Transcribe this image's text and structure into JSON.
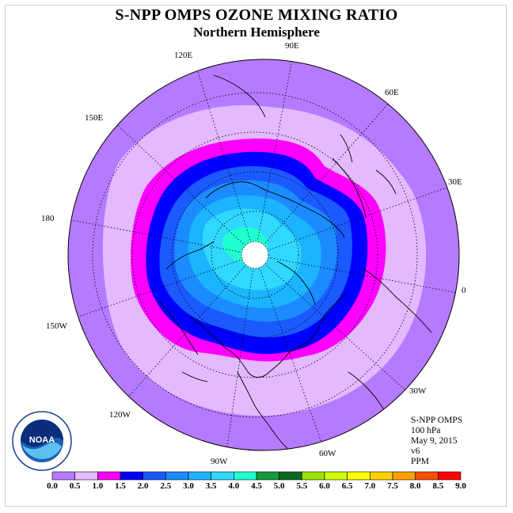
{
  "title": "S-NPP OMPS OZONE MIXING RATIO",
  "subtitle": "Northern Hemisphere",
  "longitude_labels": [
    "90E",
    "60E",
    "30E",
    "0",
    "30W",
    "60W",
    "90W",
    "120W",
    "150W",
    "180",
    "150E",
    "120E"
  ],
  "info": {
    "instrument": "S-NPP OMPS",
    "level": "100 hPa",
    "date": "May 9, 2015",
    "version": "v6",
    "units": "PPM"
  },
  "colorbar": {
    "labels": [
      "0.0",
      "0.5",
      "1.0",
      "1.5",
      "2.0",
      "2.5",
      "3.0",
      "3.5",
      "4.0",
      "4.5",
      "5.0",
      "5.5",
      "6.0",
      "6.5",
      "7.0",
      "7.5",
      "8.0",
      "8.5",
      "9.0"
    ],
    "colors": [
      "#b57aff",
      "#e3b9ff",
      "#ff00ff",
      "#0000ff",
      "#1a5aff",
      "#1b8cff",
      "#1cb4ff",
      "#30d8ff",
      "#20ffd0",
      "#139a3a",
      "#0a6a20",
      "#9be000",
      "#cfff00",
      "#ffff00",
      "#ffd000",
      "#ffa000",
      "#ff5000",
      "#ff0000",
      "#8b4a2b"
    ]
  },
  "contour_colors": {
    "c0": "#b57aff",
    "c1": "#e3b9ff",
    "c2": "#ff00ff",
    "c3": "#0000ff",
    "c4": "#1a5aff",
    "c5": "#1b8cff",
    "c6": "#1cb4ff",
    "c7": "#30d8ff",
    "c8": "#20ffd0"
  },
  "logo": {
    "text": "NOAA"
  }
}
